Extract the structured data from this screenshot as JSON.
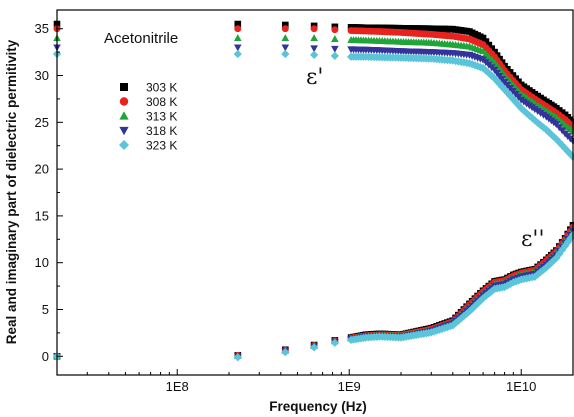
{
  "chart_data": {
    "type": "scatter",
    "title": "",
    "xlabel": "Frequency (Hz)",
    "ylabel": "Real and imaginary part of dielectric permitivity",
    "xscale": "log",
    "xlim": [
      20000000,
      20000000000
    ],
    "ylim": [
      -2,
      37
    ],
    "x_ticks": [
      100000000,
      1000000000,
      10000000000
    ],
    "x_tick_labels": [
      "1E8",
      "1E9",
      "1E10"
    ],
    "y_ticks": [
      0,
      5,
      10,
      15,
      20,
      25,
      30,
      35
    ],
    "y_tick_labels": [
      "0",
      "5",
      "10",
      "15",
      "20",
      "25",
      "30",
      "35"
    ],
    "grid": false,
    "legend_position": "upper-left",
    "annotations": [
      "Acetonitrile",
      "ε'",
      "ε''"
    ],
    "series": [
      {
        "name": "303 K",
        "marker": "square",
        "color": "#000000",
        "eps_real": {
          "x": [
            20000000,
            225000000,
            425000000,
            625000000,
            825000000,
            1025000000,
            1250000000,
            1500000000,
            2000000000,
            3000000000,
            4000000000,
            5000000000,
            6000000000,
            7000000000,
            8000000000,
            10000000000,
            12000000000,
            14000000000,
            16000000000,
            18000000000,
            20000000000
          ],
          "y": [
            35.5,
            35.5,
            35.4,
            35.3,
            35.2,
            35.15,
            35.1,
            35.1,
            35.05,
            35.0,
            34.95,
            34.7,
            34.0,
            32.5,
            31.0,
            29.0,
            28.0,
            27.2,
            26.5,
            25.8,
            25.0
          ]
        },
        "eps_imag": {
          "x": [
            20000000,
            225000000,
            425000000,
            625000000,
            825000000,
            1025000000,
            1250000000,
            1500000000,
            2000000000,
            3000000000,
            4000000000,
            5000000000,
            6000000000,
            7000000000,
            8000000000,
            9000000000,
            10000000000,
            12000000000,
            14000000000,
            16000000000,
            18000000000,
            20000000000
          ],
          "y": [
            0.0,
            0.1,
            0.7,
            1.2,
            1.7,
            2.0,
            2.3,
            2.4,
            2.3,
            3.0,
            3.8,
            5.6,
            7.0,
            8.0,
            8.2,
            8.7,
            9.0,
            9.3,
            10.3,
            11.3,
            12.6,
            14.0
          ]
        }
      },
      {
        "name": "308 K",
        "marker": "circle",
        "color": "#e8231e",
        "eps_real": {
          "x": [
            20000000,
            225000000,
            425000000,
            625000000,
            825000000,
            1025000000,
            1250000000,
            1500000000,
            2000000000,
            3000000000,
            4000000000,
            5000000000,
            6000000000,
            7000000000,
            8000000000,
            10000000000,
            12000000000,
            14000000000,
            16000000000,
            18000000000,
            20000000000
          ],
          "y": [
            35.0,
            35.0,
            35.0,
            35.0,
            34.9,
            34.8,
            34.75,
            34.7,
            34.6,
            34.4,
            34.2,
            33.9,
            33.3,
            32.0,
            30.5,
            28.5,
            27.5,
            26.7,
            26.0,
            25.3,
            24.5
          ]
        },
        "eps_imag": {
          "x": [
            20000000,
            225000000,
            425000000,
            625000000,
            825000000,
            1025000000,
            1250000000,
            1500000000,
            2000000000,
            3000000000,
            4000000000,
            5000000000,
            6000000000,
            7000000000,
            8000000000,
            9000000000,
            10000000000,
            12000000000,
            14000000000,
            16000000000,
            18000000000,
            20000000000
          ],
          "y": [
            0.0,
            0.1,
            0.65,
            1.15,
            1.65,
            1.95,
            2.2,
            2.3,
            2.25,
            2.9,
            3.7,
            5.5,
            6.9,
            7.9,
            8.1,
            8.6,
            8.9,
            9.2,
            10.2,
            11.2,
            12.5,
            13.8
          ]
        }
      },
      {
        "name": "313 K",
        "marker": "triangle-up",
        "color": "#1fa53a",
        "eps_real": {
          "x": [
            20000000,
            225000000,
            425000000,
            625000000,
            825000000,
            1025000000,
            1250000000,
            1500000000,
            2000000000,
            3000000000,
            4000000000,
            5000000000,
            6000000000,
            7000000000,
            8000000000,
            10000000000,
            12000000000,
            14000000000,
            16000000000,
            18000000000,
            20000000000
          ],
          "y": [
            34.0,
            34.0,
            34.0,
            34.0,
            33.9,
            33.8,
            33.75,
            33.7,
            33.6,
            33.5,
            33.3,
            33.1,
            32.6,
            31.4,
            30.0,
            28.0,
            27.0,
            26.2,
            25.5,
            24.7,
            24.0
          ]
        },
        "eps_imag": {
          "x": [
            20000000,
            225000000,
            425000000,
            625000000,
            825000000,
            1025000000,
            1250000000,
            1500000000,
            2000000000,
            3000000000,
            4000000000,
            5000000000,
            6000000000,
            7000000000,
            8000000000,
            9000000000,
            10000000000,
            12000000000,
            14000000000,
            16000000000,
            18000000000,
            20000000000
          ],
          "y": [
            0.0,
            0.05,
            0.6,
            1.1,
            1.6,
            1.9,
            2.15,
            2.25,
            2.2,
            2.8,
            3.6,
            5.3,
            6.7,
            7.7,
            7.9,
            8.4,
            8.7,
            9.0,
            10.0,
            11.0,
            12.3,
            13.6
          ]
        }
      },
      {
        "name": "318 K",
        "marker": "triangle-down",
        "color": "#33339a",
        "eps_real": {
          "x": [
            20000000,
            225000000,
            425000000,
            625000000,
            825000000,
            1025000000,
            1250000000,
            1500000000,
            2000000000,
            3000000000,
            4000000000,
            5000000000,
            6000000000,
            7000000000,
            8000000000,
            10000000000,
            12000000000,
            14000000000,
            16000000000,
            18000000000,
            20000000000
          ],
          "y": [
            33.0,
            33.0,
            33.0,
            32.9,
            32.85,
            32.8,
            32.75,
            32.7,
            32.6,
            32.5,
            32.4,
            32.2,
            31.7,
            30.6,
            29.3,
            27.4,
            26.4,
            25.6,
            24.8,
            23.8,
            23.0
          ]
        },
        "eps_imag": {
          "x": [
            20000000,
            225000000,
            425000000,
            625000000,
            825000000,
            1025000000,
            1250000000,
            1500000000,
            2000000000,
            3000000000,
            4000000000,
            5000000000,
            6000000000,
            7000000000,
            8000000000,
            9000000000,
            10000000000,
            12000000000,
            14000000000,
            16000000000,
            18000000000,
            20000000000
          ],
          "y": [
            0.0,
            0.0,
            0.55,
            1.05,
            1.55,
            1.85,
            2.1,
            2.2,
            2.1,
            2.7,
            3.5,
            5.1,
            6.5,
            7.5,
            7.7,
            8.2,
            8.5,
            8.8,
            9.8,
            10.8,
            12.1,
            13.4
          ]
        }
      },
      {
        "name": "323 K",
        "marker": "diamond",
        "color": "#5bc4d8",
        "eps_real": {
          "x": [
            20000000,
            225000000,
            425000000,
            625000000,
            825000000,
            1025000000,
            1250000000,
            1500000000,
            2000000000,
            3000000000,
            4000000000,
            5000000000,
            6000000000,
            7000000000,
            8000000000,
            10000000000,
            12000000000,
            14000000000,
            16000000000,
            18000000000,
            20000000000
          ],
          "y": [
            32.3,
            32.3,
            32.3,
            32.2,
            32.1,
            32.0,
            32.0,
            31.95,
            31.9,
            31.8,
            31.6,
            31.3,
            30.8,
            29.7,
            28.5,
            26.5,
            25.2,
            24.2,
            23.2,
            22.2,
            21.3
          ]
        },
        "eps_imag": {
          "x": [
            20000000,
            225000000,
            425000000,
            625000000,
            825000000,
            1025000000,
            1250000000,
            1500000000,
            2000000000,
            3000000000,
            4000000000,
            5000000000,
            6000000000,
            7000000000,
            8000000000,
            9000000000,
            10000000000,
            12000000000,
            14000000000,
            16000000000,
            18000000000,
            20000000000
          ],
          "y": [
            0.0,
            -0.1,
            0.45,
            0.95,
            1.45,
            1.75,
            2.0,
            2.1,
            2.0,
            2.55,
            3.3,
            4.8,
            6.2,
            7.2,
            7.4,
            7.9,
            8.2,
            8.5,
            9.5,
            10.5,
            11.8,
            13.0
          ]
        }
      }
    ]
  }
}
